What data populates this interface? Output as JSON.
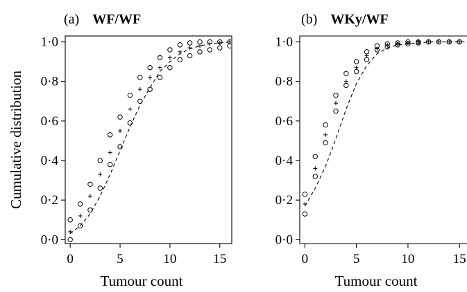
{
  "chart_data": [
    {
      "type": "scatter",
      "panel": "(a)",
      "title": "WF/WF",
      "xlabel": "Tumour count",
      "ylabel": "Cumulative distribution",
      "xlim": [
        -0.5,
        16.2
      ],
      "ylim": [
        -0.02,
        1.03
      ],
      "xticks": [
        0,
        5,
        10,
        15
      ],
      "xtick_labels": [
        "0",
        "5",
        "10",
        "15"
      ],
      "yticks": [
        0,
        0.2,
        0.4,
        0.6,
        0.8,
        1.0
      ],
      "ytick_labels": [
        "0·0",
        "0·2",
        "0·4",
        "0·6",
        "0·8",
        "1·0"
      ],
      "series": [
        {
          "marker": "circle",
          "x": [
            0,
            1,
            2,
            3,
            4,
            5,
            6,
            7,
            8,
            9,
            10,
            11,
            12,
            13,
            14,
            15,
            16
          ],
          "y": [
            0.1,
            0.18,
            0.28,
            0.4,
            0.53,
            0.62,
            0.73,
            0.82,
            0.87,
            0.92,
            0.96,
            0.985,
            0.995,
            1.0,
            1.0,
            1.0,
            1.0
          ]
        },
        {
          "marker": "plus",
          "x": [
            0,
            1,
            2,
            3,
            4,
            5,
            6,
            7,
            8,
            9,
            10,
            11,
            12,
            13,
            14,
            15,
            16
          ],
          "y": [
            0.04,
            0.12,
            0.22,
            0.33,
            0.44,
            0.55,
            0.66,
            0.76,
            0.82,
            0.87,
            0.92,
            0.95,
            0.97,
            0.98,
            0.99,
            0.995,
            1.0
          ]
        },
        {
          "marker": "circle",
          "x": [
            0,
            1,
            2,
            3,
            4,
            5,
            6,
            7,
            8,
            9,
            10,
            11,
            12,
            13,
            14,
            15,
            16
          ],
          "y": [
            0.0,
            0.07,
            0.15,
            0.26,
            0.38,
            0.47,
            0.59,
            0.7,
            0.76,
            0.82,
            0.87,
            0.91,
            0.93,
            0.95,
            0.96,
            0.97,
            0.98
          ]
        },
        {
          "marker": "dashed-line",
          "x": [
            0,
            1,
            2,
            3,
            4,
            5,
            6,
            7,
            8,
            9,
            10,
            11,
            12,
            13,
            14,
            15,
            16
          ],
          "y": [
            0.03,
            0.07,
            0.13,
            0.22,
            0.33,
            0.45,
            0.57,
            0.68,
            0.77,
            0.85,
            0.9,
            0.94,
            0.965,
            0.98,
            0.99,
            0.995,
            1.0
          ]
        }
      ]
    },
    {
      "type": "scatter",
      "panel": "(b)",
      "title": "WKy/WF",
      "xlabel": "Tumour count",
      "ylabel": "",
      "xlim": [
        -0.5,
        16.2
      ],
      "ylim": [
        -0.02,
        1.03
      ],
      "xticks": [
        0,
        5,
        10,
        15
      ],
      "xtick_labels": [
        "0",
        "5",
        "10",
        "15"
      ],
      "yticks": [
        0,
        0.2,
        0.4,
        0.6,
        0.8,
        1.0
      ],
      "ytick_labels": [
        "0·0",
        "0·2",
        "0·4",
        "0·6",
        "0·8",
        "1·0"
      ],
      "series": [
        {
          "marker": "circle",
          "x": [
            0,
            1,
            2,
            3,
            4,
            5,
            6,
            7,
            8,
            9,
            10,
            11,
            12,
            13,
            14,
            15,
            16
          ],
          "y": [
            0.23,
            0.42,
            0.58,
            0.73,
            0.84,
            0.9,
            0.95,
            0.98,
            0.99,
            0.995,
            1.0,
            1.0,
            1.0,
            1.0,
            1.0,
            1.0,
            1.0
          ]
        },
        {
          "marker": "plus",
          "x": [
            0,
            1,
            2,
            3,
            4,
            5,
            6,
            7,
            8,
            9,
            10,
            11,
            12,
            13,
            14,
            15,
            16
          ],
          "y": [
            0.18,
            0.36,
            0.53,
            0.69,
            0.8,
            0.87,
            0.93,
            0.965,
            0.985,
            0.99,
            0.995,
            1.0,
            1.0,
            1.0,
            1.0,
            1.0,
            1.0
          ]
        },
        {
          "marker": "circle",
          "x": [
            0,
            1,
            2,
            3,
            4,
            5,
            6,
            7,
            8,
            9,
            10,
            11,
            12,
            13,
            14,
            15,
            16
          ],
          "y": [
            0.13,
            0.32,
            0.49,
            0.65,
            0.78,
            0.85,
            0.91,
            0.96,
            0.975,
            0.985,
            0.99,
            0.995,
            1.0,
            1.0,
            1.0,
            1.0,
            1.0
          ]
        },
        {
          "marker": "dashed-line",
          "x": [
            0,
            1,
            2,
            3,
            4,
            5,
            6,
            7,
            8,
            9,
            10,
            11,
            12,
            13,
            14,
            15,
            16
          ],
          "y": [
            0.17,
            0.26,
            0.37,
            0.51,
            0.66,
            0.79,
            0.88,
            0.94,
            0.97,
            0.985,
            0.99,
            0.995,
            1.0,
            1.0,
            1.0,
            1.0,
            1.0
          ]
        }
      ]
    }
  ]
}
